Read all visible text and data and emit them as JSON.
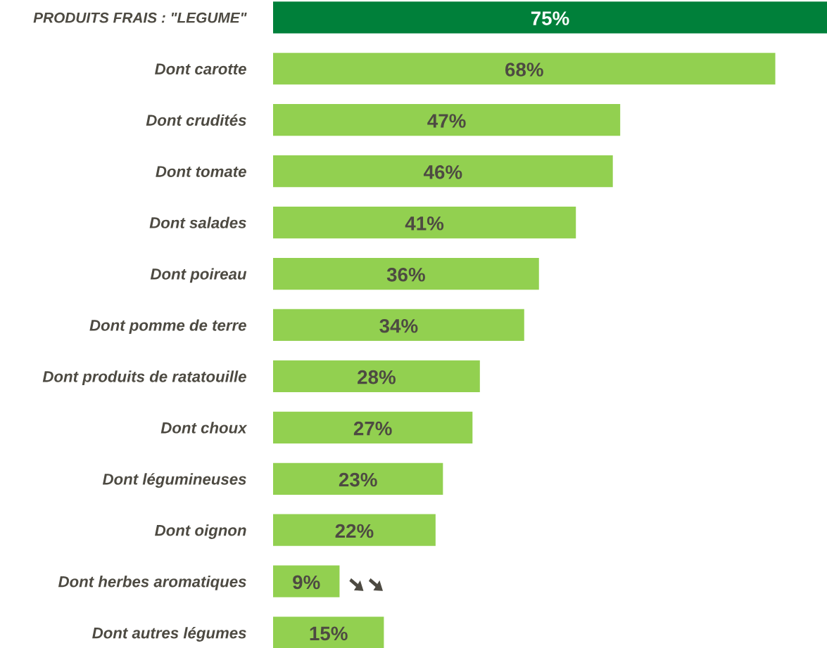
{
  "chart_data": {
    "type": "bar",
    "orientation": "horizontal",
    "categories": [
      "PRODUITS FRAIS : \"LEGUME\"",
      "Dont carotte",
      "Dont crudités",
      "Dont tomate",
      "Dont salades",
      "Dont poireau",
      "Dont pomme de terre",
      "Dont produits de ratatouille",
      "Dont choux",
      "Dont légumineuses",
      "Dont oignon",
      "Dont herbes aromatiques",
      "Dont autres légumes"
    ],
    "values": [
      75,
      68,
      47,
      46,
      41,
      36,
      34,
      28,
      27,
      23,
      22,
      9,
      15
    ],
    "value_labels": [
      "75%",
      "68%",
      "47%",
      "46%",
      "41%",
      "36%",
      "34%",
      "28%",
      "27%",
      "23%",
      "22%",
      "9%",
      "15%"
    ],
    "colors": [
      "#00803a",
      "#92d050",
      "#92d050",
      "#92d050",
      "#92d050",
      "#92d050",
      "#92d050",
      "#92d050",
      "#92d050",
      "#92d050",
      "#92d050",
      "#92d050",
      "#92d050"
    ],
    "grid": false,
    "legend": false
  }
}
